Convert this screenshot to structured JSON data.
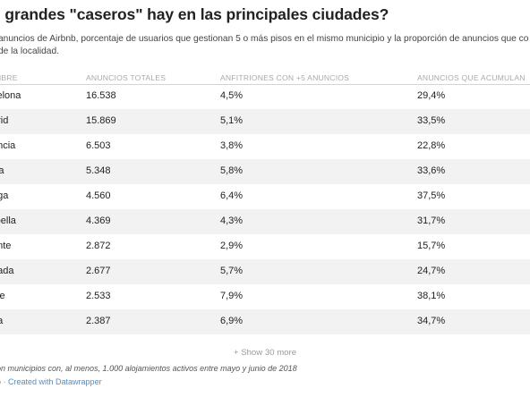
{
  "title": "s grandes \"caseros\" hay en las principales ciudades?",
  "description": [
    "anuncios de Airbnb, porcentaje de usuarios que gestionan 5 o más pisos en el mismo municipio y la proporción de anuncios que co",
    "de la localidad."
  ],
  "table": {
    "headers": [
      "MBRE",
      "ANUNCIOS TOTALES",
      "ANFITRIONES CON +5 ANUNCIOS",
      "ANUNCIOS QUE ACUMULAN"
    ],
    "rows": [
      [
        "celona",
        "16.538",
        "4,5%",
        "29,4%"
      ],
      [
        "drid",
        "15.869",
        "5,1%",
        "33,5%"
      ],
      [
        "encia",
        "6.503",
        "3,8%",
        "22,8%"
      ],
      [
        "illa",
        "5.348",
        "5,8%",
        "33,6%"
      ],
      [
        "aga",
        "4.560",
        "6,4%",
        "37,5%"
      ],
      [
        "rbella",
        "4.369",
        "4,3%",
        "31,7%"
      ],
      [
        "ante",
        "2.872",
        "2,9%",
        "15,7%"
      ],
      [
        "nada",
        "2.677",
        "5,7%",
        "24,7%"
      ],
      [
        "eje",
        "2.533",
        "7,9%",
        "38,1%"
      ],
      [
        "na",
        "2.387",
        "6,9%",
        "34,7%"
      ]
    ]
  },
  "show_more": "+ Show 30 more",
  "footnote": "on municipios con, al menos, 1.000 alojamientos activos entre mayo y junio de 2018",
  "source_prefix": "o · ",
  "source_link": "Created with Datawrapper"
}
